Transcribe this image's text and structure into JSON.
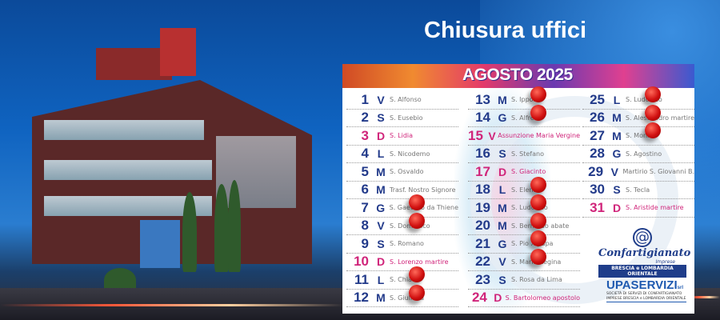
{
  "title": "Chiusura uffici",
  "calendar": {
    "month": "AGOSTO 2025",
    "columns": [
      [
        {
          "n": "1",
          "d": "V",
          "s": "S. Alfonso"
        },
        {
          "n": "2",
          "d": "S",
          "s": "S. Eusebio"
        },
        {
          "n": "3",
          "d": "D",
          "s": "S. Lidia",
          "type": "sun"
        },
        {
          "n": "4",
          "d": "L",
          "s": "S. Nicodemo"
        },
        {
          "n": "5",
          "d": "M",
          "s": "S. Osvaldo"
        },
        {
          "n": "6",
          "d": "M",
          "s": "Trasf. Nostro Signore"
        },
        {
          "n": "7",
          "d": "G",
          "s": "S. Gaetano da Thiene",
          "pin": true
        },
        {
          "n": "8",
          "d": "V",
          "s": "S. Domenico",
          "pin": true
        },
        {
          "n": "9",
          "d": "S",
          "s": "S. Romano"
        },
        {
          "n": "10",
          "d": "D",
          "s": "S. Lorenzo martire",
          "type": "sun"
        },
        {
          "n": "11",
          "d": "L",
          "s": "S. Chiara",
          "pin": true
        },
        {
          "n": "12",
          "d": "M",
          "s": "S. Giuliana",
          "pin": true
        }
      ],
      [
        {
          "n": "13",
          "d": "M",
          "s": "S. Ippolito",
          "pin": true
        },
        {
          "n": "14",
          "d": "G",
          "s": "S. Alfredo",
          "pin": true
        },
        {
          "n": "15",
          "d": "V",
          "s": "Assunzione Maria Vergine",
          "type": "hol"
        },
        {
          "n": "16",
          "d": "S",
          "s": "S. Stefano"
        },
        {
          "n": "17",
          "d": "D",
          "s": "S. Giacinto",
          "type": "sun"
        },
        {
          "n": "18",
          "d": "L",
          "s": "S. Elena",
          "pin": true
        },
        {
          "n": "19",
          "d": "M",
          "s": "S. Ludovico",
          "pin": true
        },
        {
          "n": "20",
          "d": "M",
          "s": "S. Bernardo abate",
          "pin": true
        },
        {
          "n": "21",
          "d": "G",
          "s": "S. Pio X papa",
          "pin": true
        },
        {
          "n": "22",
          "d": "V",
          "s": "S. Maria Regina",
          "pin": true
        },
        {
          "n": "23",
          "d": "S",
          "s": "S. Rosa da Lima"
        },
        {
          "n": "24",
          "d": "D",
          "s": "S. Bartolomeo apostolo",
          "type": "sun"
        }
      ],
      [
        {
          "n": "25",
          "d": "L",
          "s": "S. Ludovico",
          "pin": true
        },
        {
          "n": "26",
          "d": "M",
          "s": "S. Alessandro martire",
          "pin": true
        },
        {
          "n": "27",
          "d": "M",
          "s": "S. Monica",
          "pin": true
        },
        {
          "n": "28",
          "d": "G",
          "s": "S. Agostino"
        },
        {
          "n": "29",
          "d": "V",
          "s": "Martirio S. Giovanni B."
        },
        {
          "n": "30",
          "d": "S",
          "s": "S. Tecla"
        },
        {
          "n": "31",
          "d": "D",
          "s": "S. Aristide martire",
          "type": "sun"
        }
      ]
    ]
  },
  "logos": {
    "confartigianato": {
      "name": "Confartigianato",
      "sub": "Imprese",
      "bar": "BRESCIA e LOMBARDIA ORIENTALE"
    },
    "upaservizi": {
      "name": "UPASERVIZI",
      "suffix": "srl",
      "sub": "SOCIETÀ DI SERVIZI DI CONFARTIGIANATO IMPRESE BRESCIA e LOMBARDIA ORIENTALE"
    }
  },
  "colors": {
    "blue": "#223a8a",
    "magenta": "#d0247a",
    "pin": "#d01010"
  }
}
